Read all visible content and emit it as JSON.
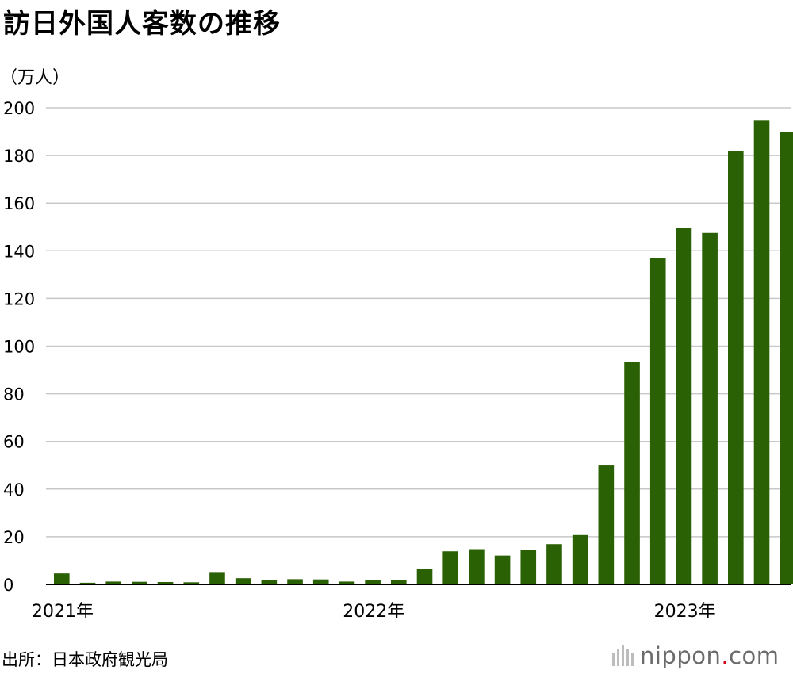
{
  "title": "訪日外国人客数の推移",
  "unit": "（万人）",
  "source": "出所：日本政府観光局",
  "logo": {
    "name": "nippon",
    "dot": ".",
    "tld": "com"
  },
  "colors": {
    "bar": "#2b6105",
    "grid": "#c8c8c8",
    "axis": "#000000"
  },
  "chart_data": {
    "type": "bar",
    "title": "訪日外国人客数の推移",
    "ylabel": "（万人）",
    "ylim": [
      0,
      200
    ],
    "yticks": [
      0,
      20,
      40,
      60,
      80,
      100,
      120,
      140,
      160,
      180,
      200
    ],
    "grid": true,
    "xtick_labels": [
      {
        "label": "2021年",
        "index": 0
      },
      {
        "label": "2022年",
        "index": 12
      },
      {
        "label": "2023年",
        "index": 24
      }
    ],
    "categories": [
      "2021-01",
      "2021-02",
      "2021-03",
      "2021-04",
      "2021-05",
      "2021-06",
      "2021-07",
      "2021-08",
      "2021-09",
      "2021-10",
      "2021-11",
      "2021-12",
      "2022-01",
      "2022-02",
      "2022-03",
      "2022-04",
      "2022-05",
      "2022-06",
      "2022-07",
      "2022-08",
      "2022-09",
      "2022-10",
      "2022-11",
      "2022-12",
      "2023-01",
      "2023-02",
      "2023-03",
      "2023-04",
      "2023-05"
    ],
    "values": [
      4.6,
      0.7,
      1.2,
      1.1,
      1.0,
      0.9,
      5.2,
      2.6,
      1.8,
      2.2,
      2.1,
      1.2,
      1.7,
      1.7,
      6.6,
      13.9,
      14.8,
      12.1,
      14.5,
      16.9,
      20.7,
      49.9,
      93.4,
      137.0,
      149.7,
      147.5,
      181.8,
      194.9,
      189.8
    ]
  }
}
